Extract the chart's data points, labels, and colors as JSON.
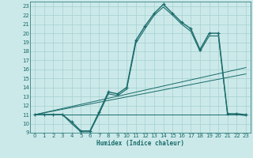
{
  "xlabel": "Humidex (Indice chaleur)",
  "xlim": [
    -0.5,
    23.5
  ],
  "ylim": [
    9,
    23.5
  ],
  "xticks": [
    0,
    1,
    2,
    3,
    4,
    5,
    6,
    7,
    8,
    9,
    10,
    11,
    12,
    13,
    14,
    15,
    16,
    17,
    18,
    19,
    20,
    21,
    22,
    23
  ],
  "yticks": [
    9,
    10,
    11,
    12,
    13,
    14,
    15,
    16,
    17,
    18,
    19,
    20,
    21,
    22,
    23
  ],
  "bg_color": "#cce9e9",
  "line_color": "#1a6b6b",
  "grid_color": "#aad4d4",
  "main_x": [
    0,
    1,
    2,
    3,
    4,
    5,
    6,
    7,
    8,
    9,
    10,
    11,
    12,
    13,
    14,
    15,
    16,
    17,
    18,
    19,
    20,
    21,
    22,
    23
  ],
  "main_y": [
    11,
    11,
    11,
    11,
    10.2,
    9.2,
    9.2,
    11.3,
    13.5,
    13.3,
    14.0,
    19.2,
    20.8,
    22.2,
    23.2,
    22.2,
    21.2,
    20.5,
    18.2,
    20.0,
    20.0,
    11.1,
    11.1,
    11.0
  ],
  "smooth_y": [
    11,
    11,
    11,
    11,
    10.0,
    9.1,
    9.1,
    11.1,
    13.3,
    13.1,
    13.8,
    18.9,
    20.5,
    22.0,
    22.9,
    22.0,
    21.0,
    20.2,
    18.0,
    19.7,
    19.7,
    11.0,
    11.0,
    10.9
  ],
  "line1": [
    [
      0,
      23
    ],
    [
      11,
      11.0
    ]
  ],
  "line2": [
    [
      0,
      23
    ],
    [
      11,
      15.5
    ]
  ],
  "line3": [
    [
      0,
      23
    ],
    [
      11,
      16.2
    ]
  ]
}
